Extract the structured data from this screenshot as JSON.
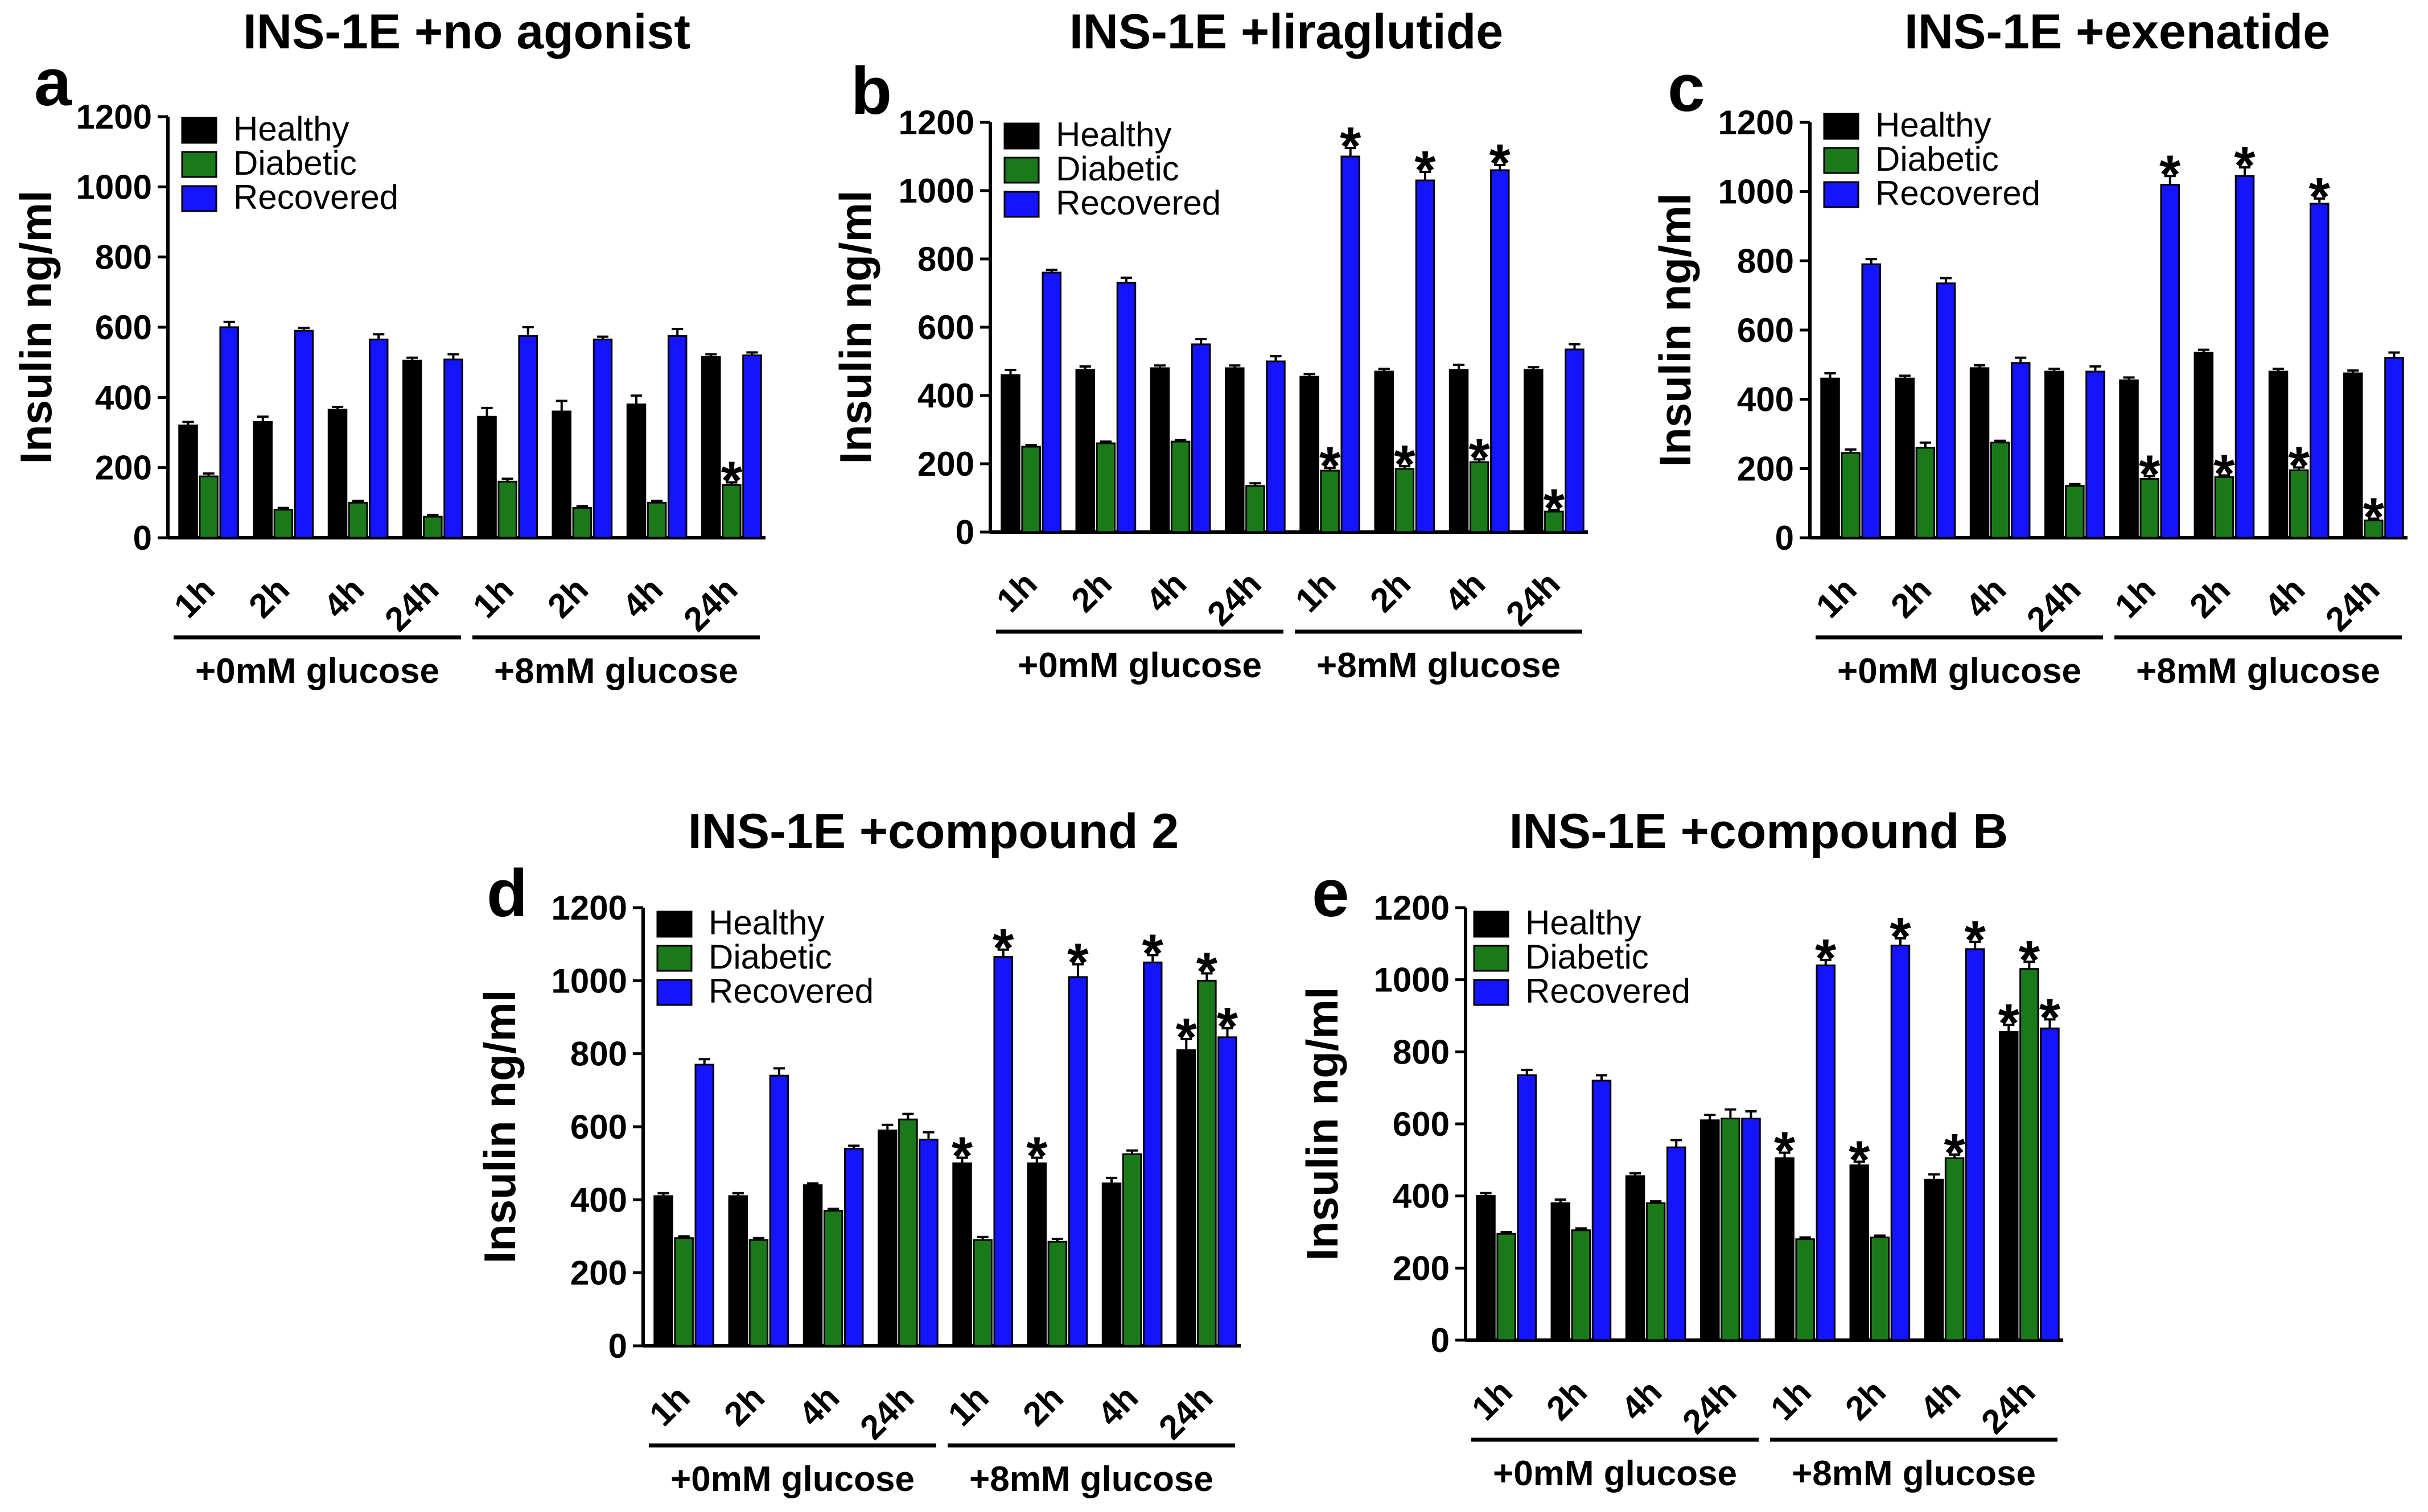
{
  "chart_data": [
    {
      "type": "bar",
      "panel": "a",
      "title": "INS-1E +no agonist",
      "ylabel": "Insulin ng/ml",
      "xlabel": "",
      "ylim": [
        0,
        1200
      ],
      "yticks": [
        "0",
        "200",
        "400",
        "600",
        "800",
        "1000",
        "1200"
      ],
      "categories": [
        "1h",
        "2h",
        "4h",
        "24h",
        "1h",
        "2h",
        "4h",
        "24h"
      ],
      "groups": [
        "+0mM glucose",
        "+8mM glucose"
      ],
      "series": [
        {
          "name": "Healthy",
          "color": "#000000",
          "values": [
            320,
            330,
            365,
            505,
            345,
            360,
            380,
            515
          ],
          "errors": [
            10,
            15,
            8,
            8,
            25,
            30,
            25,
            8
          ],
          "stars": [
            false,
            false,
            false,
            false,
            false,
            false,
            false,
            false
          ]
        },
        {
          "name": "Diabetic",
          "color": "#1a7a1a",
          "values": [
            175,
            80,
            100,
            60,
            160,
            85,
            100,
            150
          ],
          "errors": [
            8,
            5,
            5,
            5,
            8,
            5,
            5,
            8
          ],
          "stars": [
            false,
            false,
            false,
            false,
            false,
            false,
            false,
            true
          ]
        },
        {
          "name": "Recovered",
          "color": "#1414ff",
          "values": [
            600,
            590,
            565,
            508,
            575,
            565,
            575,
            520
          ],
          "errors": [
            15,
            8,
            15,
            15,
            25,
            8,
            20,
            8
          ],
          "stars": [
            false,
            false,
            false,
            false,
            false,
            false,
            false,
            false
          ]
        }
      ]
    },
    {
      "type": "bar",
      "panel": "b",
      "title": "INS-1E +liraglutide",
      "ylabel": "Insulin ng/ml",
      "xlabel": "",
      "ylim": [
        0,
        1200
      ],
      "yticks": [
        "0",
        "200",
        "400",
        "600",
        "800",
        "1000",
        "1200"
      ],
      "categories": [
        "1h",
        "2h",
        "4h",
        "24h",
        "1h",
        "2h",
        "4h",
        "24h"
      ],
      "groups": [
        "+0mM glucose",
        "+8mM glucose"
      ],
      "series": [
        {
          "name": "Healthy",
          "color": "#000000",
          "values": [
            460,
            475,
            480,
            480,
            455,
            470,
            475,
            475
          ],
          "errors": [
            15,
            10,
            8,
            8,
            8,
            8,
            15,
            8
          ],
          "stars": [
            false,
            false,
            false,
            false,
            false,
            false,
            false,
            false
          ]
        },
        {
          "name": "Diabetic",
          "color": "#1a7a1a",
          "values": [
            250,
            260,
            265,
            135,
            180,
            185,
            205,
            60
          ],
          "errors": [
            5,
            5,
            5,
            8,
            8,
            8,
            8,
            5
          ],
          "stars": [
            false,
            false,
            false,
            false,
            true,
            true,
            true,
            true
          ]
        },
        {
          "name": "Recovered",
          "color": "#1414ff",
          "values": [
            760,
            730,
            550,
            500,
            1100,
            1030,
            1060,
            535
          ],
          "errors": [
            8,
            15,
            15,
            15,
            25,
            25,
            15,
            15
          ],
          "stars": [
            false,
            false,
            false,
            false,
            true,
            true,
            true,
            false
          ]
        }
      ]
    },
    {
      "type": "bar",
      "panel": "c",
      "title": "INS-1E +exenatide",
      "ylabel": "Insulin ng/ml",
      "xlabel": "",
      "ylim": [
        0,
        1200
      ],
      "yticks": [
        "0",
        "200",
        "400",
        "600",
        "800",
        "1000",
        "1200"
      ],
      "categories": [
        "1h",
        "2h",
        "4h",
        "24h",
        "1h",
        "2h",
        "4h",
        "24h"
      ],
      "groups": [
        "+0mM glucose",
        "+8mM glucose"
      ],
      "series": [
        {
          "name": "Healthy",
          "color": "#000000",
          "values": [
            460,
            460,
            490,
            480,
            455,
            535,
            480,
            475
          ],
          "errors": [
            15,
            8,
            8,
            8,
            8,
            8,
            8,
            8
          ],
          "stars": [
            false,
            false,
            false,
            false,
            false,
            false,
            false,
            false
          ]
        },
        {
          "name": "Diabetic",
          "color": "#1a7a1a",
          "values": [
            245,
            260,
            275,
            150,
            170,
            175,
            195,
            50
          ],
          "errors": [
            10,
            15,
            5,
            5,
            8,
            5,
            8,
            5
          ],
          "stars": [
            false,
            false,
            false,
            false,
            true,
            true,
            true,
            true
          ]
        },
        {
          "name": "Recovered",
          "color": "#1414ff",
          "values": [
            790,
            735,
            505,
            480,
            1020,
            1045,
            965,
            520
          ],
          "errors": [
            15,
            15,
            15,
            15,
            25,
            25,
            15,
            15
          ],
          "stars": [
            false,
            false,
            false,
            false,
            true,
            true,
            true,
            false
          ]
        }
      ]
    },
    {
      "type": "bar",
      "panel": "d",
      "title": "INS-1E +compound 2",
      "ylabel": "Insulin ng/ml",
      "xlabel": "",
      "ylim": [
        0,
        1200
      ],
      "yticks": [
        "0",
        "200",
        "400",
        "600",
        "800",
        "1000",
        "1200"
      ],
      "categories": [
        "1h",
        "2h",
        "4h",
        "24h",
        "1h",
        "2h",
        "4h",
        "24h"
      ],
      "groups": [
        "+0mM glucose",
        "+8mM glucose"
      ],
      "series": [
        {
          "name": "Healthy",
          "color": "#000000",
          "values": [
            410,
            410,
            440,
            590,
            500,
            500,
            445,
            810
          ],
          "errors": [
            8,
            8,
            5,
            15,
            15,
            15,
            15,
            30
          ],
          "stars": [
            false,
            false,
            false,
            false,
            true,
            true,
            false,
            true
          ]
        },
        {
          "name": "Diabetic",
          "color": "#1a7a1a",
          "values": [
            295,
            290,
            370,
            620,
            290,
            285,
            525,
            1000
          ],
          "errors": [
            5,
            5,
            5,
            15,
            8,
            8,
            10,
            20
          ],
          "stars": [
            false,
            false,
            false,
            false,
            false,
            false,
            false,
            true
          ]
        },
        {
          "name": "Recovered",
          "color": "#1414ff",
          "values": [
            770,
            740,
            540,
            565,
            1065,
            1010,
            1050,
            845
          ],
          "errors": [
            15,
            20,
            8,
            20,
            20,
            35,
            20,
            25
          ],
          "stars": [
            false,
            false,
            false,
            false,
            true,
            true,
            true,
            true
          ]
        }
      ]
    },
    {
      "type": "bar",
      "panel": "e",
      "title": "INS-1E +compound B",
      "ylabel": "Insulin ng/ml",
      "xlabel": "",
      "ylim": [
        0,
        1200
      ],
      "yticks": [
        "0",
        "200",
        "400",
        "600",
        "800",
        "1000",
        "1200"
      ],
      "categories": [
        "1h",
        "2h",
        "4h",
        "24h",
        "1h",
        "2h",
        "4h",
        "24h"
      ],
      "groups": [
        "+0mM glucose",
        "+8mM glucose"
      ],
      "series": [
        {
          "name": "Healthy",
          "color": "#000000",
          "values": [
            400,
            380,
            455,
            610,
            505,
            485,
            445,
            855
          ],
          "errors": [
            8,
            10,
            8,
            15,
            15,
            10,
            15,
            20
          ],
          "stars": [
            false,
            false,
            false,
            false,
            true,
            true,
            false,
            true
          ]
        },
        {
          "name": "Diabetic",
          "color": "#1a7a1a",
          "values": [
            295,
            305,
            380,
            615,
            280,
            285,
            505,
            1030
          ],
          "errors": [
            5,
            5,
            5,
            25,
            5,
            5,
            10,
            20
          ],
          "stars": [
            false,
            false,
            false,
            false,
            false,
            false,
            true,
            true
          ]
        },
        {
          "name": "Recovered",
          "color": "#1414ff",
          "values": [
            735,
            720,
            535,
            615,
            1040,
            1095,
            1085,
            865
          ],
          "errors": [
            15,
            15,
            20,
            20,
            15,
            20,
            20,
            25
          ],
          "stars": [
            false,
            false,
            false,
            false,
            true,
            true,
            true,
            true
          ]
        }
      ]
    }
  ]
}
